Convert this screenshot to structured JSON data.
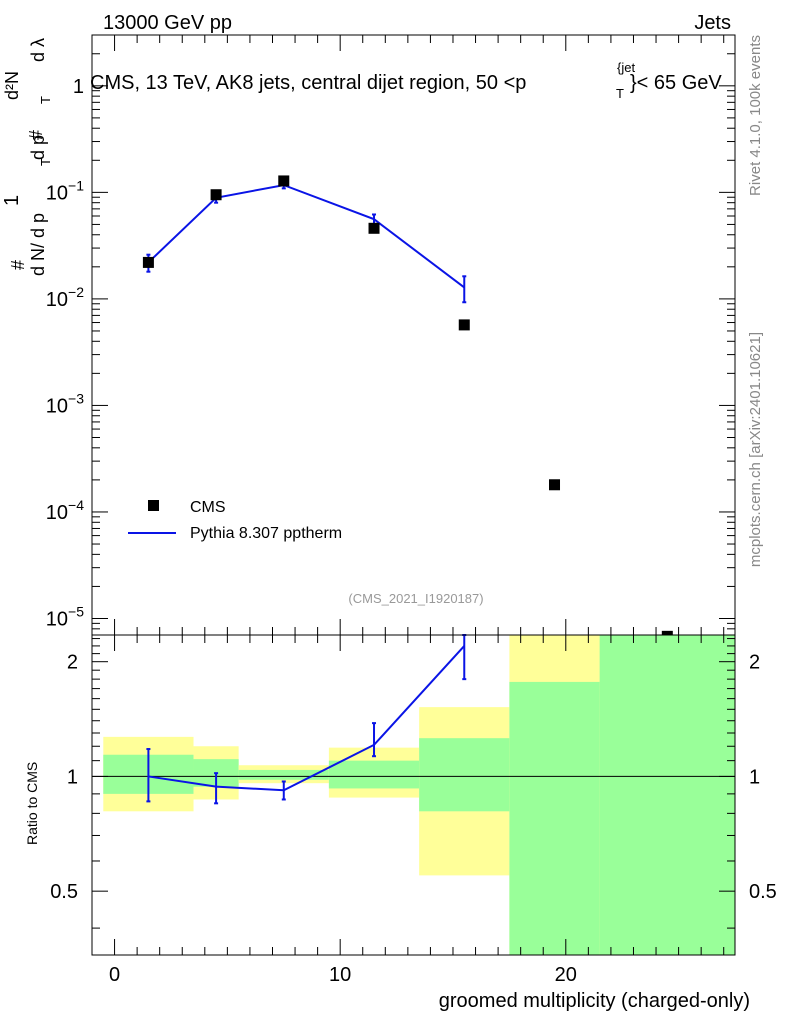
{
  "header": {
    "left": "13000 GeV pp",
    "right": "Jets"
  },
  "side_labels": {
    "rivet": "Rivet 4.1.0,  100k events",
    "mcplots": "mcplots.cern.ch [arXiv:2401.10621]"
  },
  "chart_data": [
    {
      "type": "scatter",
      "panel": "main",
      "title": "CMS, 13 TeV, AK8 jets, central dijet region, 50 <p_T^{jet}< 65 GeV",
      "title_parts": {
        "main": "CMS, 13 TeV, AK8 jets, central dijet region, 50 <p",
        "sub": "T",
        "sup": "{jet",
        "close": "}< 65 GeV"
      },
      "ylabel_parts": {
        "one": "1",
        "hash": "#",
        "dn": "d N/ d p",
        "t": "T",
        "d2n": "d²N",
        "dpt": "d p",
        "dlambda": "d λ"
      },
      "yscale": "log",
      "ylim": [
        7e-06,
        3
      ],
      "xlim": [
        -1,
        27.5
      ],
      "yticks": [
        {
          "value": 1e-05,
          "base": "10",
          "exp": "−5"
        },
        {
          "value": 0.0001,
          "base": "10",
          "exp": "−4"
        },
        {
          "value": 0.001,
          "base": "10",
          "exp": "−3"
        },
        {
          "value": 0.01,
          "base": "10",
          "exp": "−2"
        },
        {
          "value": 0.1,
          "base": "10",
          "exp": "−1"
        },
        {
          "value": 1,
          "base": "1",
          "exp": ""
        }
      ],
      "watermark": "(CMS_2021_I1920187)",
      "series": [
        {
          "name": "CMS",
          "style": "markers",
          "color": "#000000",
          "x": [
            1.5,
            4.5,
            7.5,
            11.5,
            15.5,
            19.5,
            24.5
          ],
          "y": [
            0.022,
            0.095,
            0.128,
            0.046,
            0.0057,
            0.00018,
            6.8e-06
          ]
        },
        {
          "name": "Pythia 8.307 pptherm",
          "style": "line",
          "color": "#0a14e6",
          "x": [
            1.5,
            4.5,
            7.5,
            11.5,
            15.5
          ],
          "y": [
            0.022,
            0.089,
            0.117,
            0.056,
            0.0128
          ],
          "err_low": [
            0.004,
            0.009,
            0.008,
            0.006,
            0.0035
          ],
          "err_high": [
            0.004,
            0.009,
            0.008,
            0.006,
            0.0035
          ]
        }
      ],
      "legend": [
        {
          "label": "CMS",
          "marker": "square"
        },
        {
          "label": "Pythia 8.307 pptherm",
          "marker": "line"
        }
      ]
    },
    {
      "type": "line",
      "panel": "ratio",
      "ylabel": "Ratio to CMS",
      "xlabel": "groomed multiplicity (charged-only)",
      "yscale": "log",
      "ylim": [
        0.34,
        2.35
      ],
      "xlim": [
        -1,
        27.5
      ],
      "xticks": [
        0,
        10,
        20
      ],
      "xtick_labels": [
        "0",
        "10",
        "20"
      ],
      "yticks": [
        0.5,
        1,
        2
      ],
      "ytick_labels": [
        "0.5",
        "1",
        "2"
      ],
      "uncertainty_bands": [
        {
          "x0": -0.5,
          "x1": 3.5,
          "yellow": [
            0.81,
            1.27
          ],
          "green": [
            0.9,
            1.14
          ]
        },
        {
          "x0": 3.5,
          "x1": 5.5,
          "yellow": [
            0.87,
            1.2
          ],
          "green": [
            0.94,
            1.11
          ]
        },
        {
          "x0": 5.5,
          "x1": 9.5,
          "yellow": [
            0.96,
            1.07
          ],
          "green": [
            0.98,
            1.04
          ]
        },
        {
          "x0": 9.5,
          "x1": 13.5,
          "yellow": [
            0.88,
            1.19
          ],
          "green": [
            0.93,
            1.1
          ]
        },
        {
          "x0": 13.5,
          "x1": 17.5,
          "yellow": [
            0.55,
            1.52
          ],
          "green": [
            0.81,
            1.26
          ]
        },
        {
          "x0": 17.5,
          "x1": 21.5,
          "yellow": [
            0.34,
            2.35
          ],
          "green": [
            0.34,
            1.77
          ]
        },
        {
          "x0": 21.5,
          "x1": 27.5,
          "yellow": [
            0.34,
            2.35
          ],
          "green": [
            0.34,
            2.35
          ]
        }
      ],
      "series": [
        {
          "name": "Pythia 8.307 pptherm / CMS",
          "color": "#0a14e6",
          "x": [
            1.5,
            4.5,
            7.5,
            11.5,
            15.5
          ],
          "y": [
            1.0,
            0.94,
            0.92,
            1.21,
            2.2
          ],
          "err_low": [
            0.14,
            0.09,
            0.05,
            0.08,
            0.4
          ],
          "err_high": [
            0.18,
            0.08,
            0.05,
            0.17,
            0.35
          ]
        }
      ]
    }
  ]
}
